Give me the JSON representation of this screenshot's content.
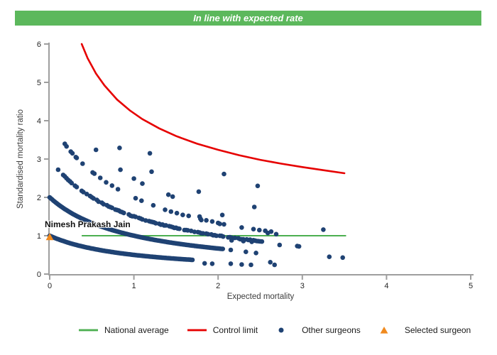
{
  "header": {
    "title": "In line with expected rate",
    "bg_color": "#5CB85C"
  },
  "chart_data": {
    "type": "scatter",
    "title": "",
    "xlabel": "Expected mortality",
    "ylabel": "Standardised mortality ratio",
    "xlim": [
      0,
      5
    ],
    "ylim": [
      0,
      6
    ],
    "x_ticks": [
      0,
      1,
      2,
      3,
      4,
      5
    ],
    "y_ticks": [
      0,
      1,
      2,
      3,
      4,
      5,
      6
    ],
    "grid": false,
    "axis_color": "#9E9E9E",
    "national_average": {
      "value": 1,
      "x_start": 0.38,
      "x_end": 3.52,
      "color": "#4CAF50"
    },
    "control_limit": {
      "color": "#E60000",
      "points": [
        [
          0.38,
          6.0
        ],
        [
          0.45,
          5.63
        ],
        [
          0.55,
          5.23
        ],
        [
          0.65,
          4.92
        ],
        [
          0.8,
          4.55
        ],
        [
          0.95,
          4.27
        ],
        [
          1.1,
          4.04
        ],
        [
          1.3,
          3.8
        ],
        [
          1.5,
          3.6
        ],
        [
          1.75,
          3.4
        ],
        [
          2.0,
          3.24
        ],
        [
          2.25,
          3.1
        ],
        [
          2.5,
          2.98
        ],
        [
          2.75,
          2.88
        ],
        [
          3.0,
          2.79
        ],
        [
          3.25,
          2.71
        ],
        [
          3.5,
          2.63
        ]
      ]
    },
    "other_surgeons": {
      "color": "#1F4273",
      "band_formula": "smr = observed_deaths / (expected + 1)",
      "bands": [
        {
          "observed": 1,
          "x_from": 0.0,
          "x_to": 1.7,
          "step": 0.015,
          "gap_fraction": 0
        },
        {
          "observed": 2,
          "x_from": 0.0,
          "x_to": 2.05,
          "step": 0.015,
          "gap_fraction": 0
        },
        {
          "observed": 3,
          "x_from": 0.1,
          "x_to": 2.52,
          "step": 0.02,
          "gap_fraction": 0.3
        },
        {
          "observed": 4,
          "x_from": 0.18,
          "x_to": 2.7,
          "step": 0.07,
          "gap_fraction": 0.4
        }
      ],
      "points": [
        [
          0.2,
          3.33
        ],
        [
          0.27,
          3.15
        ],
        [
          0.31,
          3.05
        ],
        [
          0.39,
          2.88
        ],
        [
          0.51,
          2.65
        ],
        [
          0.55,
          3.24
        ],
        [
          0.84,
          2.72
        ],
        [
          1.0,
          2.49
        ],
        [
          1.1,
          2.36
        ],
        [
          1.41,
          2.07
        ],
        [
          1.46,
          2.02
        ],
        [
          0.83,
          3.29
        ],
        [
          1.21,
          2.67
        ],
        [
          1.77,
          2.15
        ],
        [
          2.43,
          1.75
        ],
        [
          1.19,
          3.15
        ],
        [
          2.07,
          2.61
        ],
        [
          2.47,
          2.3
        ],
        [
          2.05,
          1.54
        ],
        [
          1.78,
          1.5
        ],
        [
          1.8,
          1.41
        ],
        [
          2.02,
          1.31
        ],
        [
          2.59,
          1.07
        ],
        [
          2.69,
          1.04
        ],
        [
          3.25,
          1.16
        ],
        [
          2.16,
          0.88
        ],
        [
          2.3,
          0.86
        ],
        [
          2.4,
          0.84
        ],
        [
          2.73,
          0.76
        ],
        [
          2.94,
          0.73
        ],
        [
          2.96,
          0.72
        ],
        [
          2.15,
          0.63
        ],
        [
          2.33,
          0.58
        ],
        [
          2.45,
          0.55
        ],
        [
          3.32,
          0.45
        ],
        [
          3.48,
          0.43
        ],
        [
          1.84,
          0.28
        ],
        [
          1.93,
          0.27
        ],
        [
          2.15,
          0.27
        ],
        [
          2.28,
          0.25
        ],
        [
          2.39,
          0.24
        ],
        [
          2.62,
          0.31
        ],
        [
          2.67,
          0.24
        ]
      ]
    },
    "selected_surgeon": {
      "label": "Nimesh Prakash Jain",
      "x": 0.0,
      "y": 0.97,
      "color": "#F08A1E"
    }
  },
  "legend": {
    "items": [
      {
        "label": "National average",
        "marker": "line",
        "color": "#4CAF50"
      },
      {
        "label": "Control limit",
        "marker": "line",
        "color": "#E60000"
      },
      {
        "label": "Other surgeons",
        "marker": "dot",
        "color": "#1F4273"
      },
      {
        "label": "Selected surgeon",
        "marker": "triangle",
        "color": "#F08A1E"
      }
    ]
  }
}
